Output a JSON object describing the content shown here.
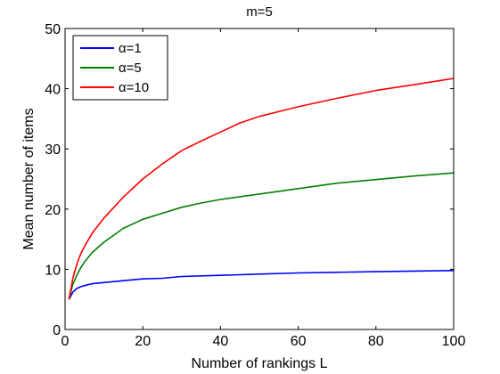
{
  "chart_data": {
    "type": "line",
    "title": "m=5",
    "xlabel": "Number of rankings L",
    "ylabel": "Mean number of items",
    "xlim": [
      0,
      100
    ],
    "ylim": [
      0,
      50
    ],
    "xticks": [
      0,
      20,
      40,
      60,
      80,
      100
    ],
    "yticks": [
      0,
      10,
      20,
      30,
      40,
      50
    ],
    "legend_position": "top-left",
    "grid": false,
    "series": [
      {
        "name": "α=1",
        "color": "#0000ff",
        "x": [
          1,
          2,
          3,
          4,
          5,
          7,
          10,
          15,
          20,
          25,
          30,
          40,
          50,
          60,
          70,
          80,
          90,
          100
        ],
        "values": [
          5.0,
          6.2,
          6.8,
          7.1,
          7.3,
          7.6,
          7.8,
          8.1,
          8.4,
          8.5,
          8.8,
          9.0,
          9.2,
          9.4,
          9.5,
          9.6,
          9.7,
          9.8
        ]
      },
      {
        "name": "α=5",
        "color": "#008000",
        "x": [
          1,
          2,
          3,
          4,
          5,
          7,
          10,
          15,
          20,
          25,
          30,
          35,
          40,
          50,
          60,
          70,
          80,
          90,
          100
        ],
        "values": [
          5.0,
          7.5,
          9.0,
          10.2,
          11.2,
          12.8,
          14.5,
          16.8,
          18.3,
          19.3,
          20.3,
          21.0,
          21.6,
          22.5,
          23.4,
          24.3,
          24.9,
          25.5,
          26.0
        ]
      },
      {
        "name": "α=10",
        "color": "#ff0000",
        "x": [
          1,
          2,
          3,
          4,
          5,
          7,
          10,
          15,
          20,
          25,
          30,
          35,
          40,
          45,
          50,
          60,
          70,
          80,
          90,
          100
        ],
        "values": [
          5.0,
          8.5,
          10.8,
          12.5,
          13.8,
          16.0,
          18.5,
          22.0,
          25.0,
          27.5,
          29.7,
          31.3,
          32.8,
          34.3,
          35.4,
          37.0,
          38.4,
          39.7,
          40.7,
          41.7
        ]
      }
    ]
  }
}
